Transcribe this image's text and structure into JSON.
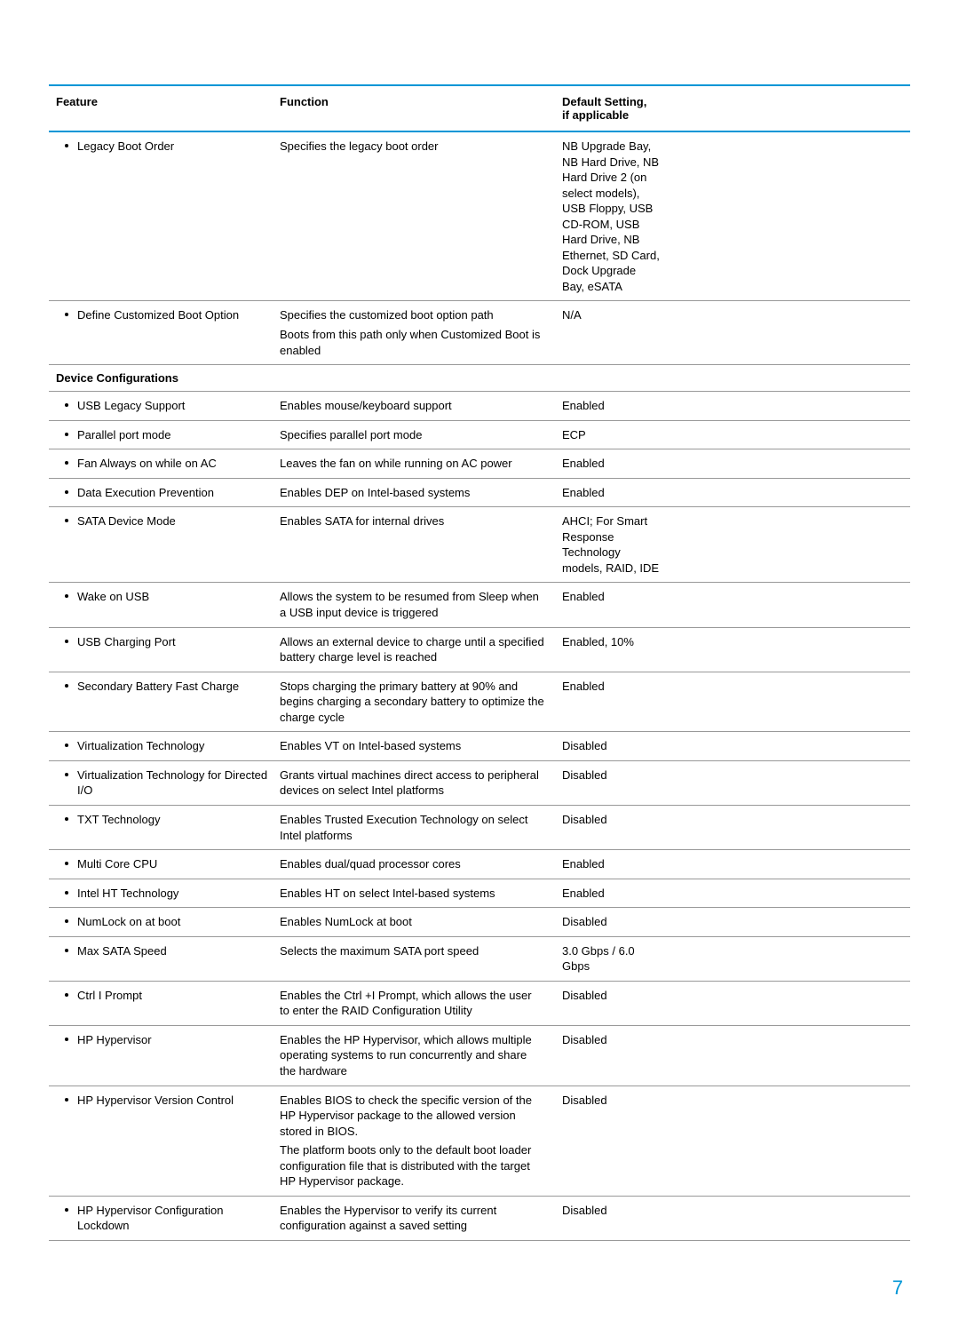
{
  "headers": {
    "feature": "Feature",
    "function": "Function",
    "default_line1": "Default Setting,",
    "default_line2": "if applicable"
  },
  "section": {
    "device_config": "Device Configurations"
  },
  "rows": [
    {
      "feature": "Legacy Boot Order",
      "function": "Specifies the legacy boot order",
      "default": "NB Upgrade Bay, NB Hard Drive, NB Hard Drive 2 (on select models), USB Floppy, USB CD-ROM, USB Hard Drive, NB Ethernet, SD Card, Dock Upgrade Bay, eSATA"
    },
    {
      "feature": "Define Customized Boot Option",
      "function_lines": [
        "Specifies the customized boot option path",
        "Boots from this path only when Customized Boot is enabled"
      ],
      "default": "N/A"
    }
  ],
  "device_rows": [
    {
      "feature": "USB Legacy Support",
      "function": "Enables mouse/keyboard support",
      "default": "Enabled"
    },
    {
      "feature": "Parallel port mode",
      "function": "Specifies parallel port mode",
      "default": "ECP"
    },
    {
      "feature": "Fan Always on while on AC",
      "function": "Leaves the fan on while running on AC power",
      "default": "Enabled"
    },
    {
      "feature": "Data Execution Prevention",
      "function": "Enables DEP on Intel-based systems",
      "default": "Enabled"
    },
    {
      "feature": "SATA Device Mode",
      "function": "Enables SATA for internal drives",
      "default": "AHCI; For Smart Response Technology models, RAID, IDE"
    },
    {
      "feature": "Wake on USB",
      "function": "Allows the system to be resumed from Sleep when a USB input device is triggered",
      "default": "Enabled"
    },
    {
      "feature": "USB Charging Port",
      "function": "Allows an external device to charge until a specified battery charge level is reached",
      "default": "Enabled, 10%"
    },
    {
      "feature": "Secondary Battery Fast Charge",
      "function": "Stops charging the primary battery at 90% and begins charging a secondary battery to optimize the charge cycle",
      "default": "Enabled"
    },
    {
      "feature": "Virtualization Technology",
      "function": "Enables VT on Intel-based systems",
      "default": "Disabled"
    },
    {
      "feature": "Virtualization Technology for Directed I/O",
      "function": "Grants virtual machines direct access to peripheral devices on select Intel platforms",
      "default": "Disabled"
    },
    {
      "feature": "TXT Technology",
      "function": "Enables Trusted Execution Technology on select Intel platforms",
      "default": "Disabled"
    },
    {
      "feature": "Multi Core CPU",
      "function": "Enables dual/quad processor cores",
      "default": "Enabled"
    },
    {
      "feature": "Intel HT Technology",
      "function": "Enables HT on select Intel-based systems",
      "default": "Enabled"
    },
    {
      "feature": "NumLock on at boot",
      "function": "Enables NumLock at boot",
      "default": "Disabled"
    },
    {
      "feature": "Max SATA Speed",
      "function": "Selects the maximum SATA port speed",
      "default": "3.0 Gbps / 6.0 Gbps"
    },
    {
      "feature": "Ctrl I Prompt",
      "function": "Enables the Ctrl +I Prompt, which allows the user to enter the RAID Configuration Utility",
      "default": "Disabled"
    },
    {
      "feature": "HP Hypervisor",
      "function": "Enables the HP Hypervisor, which allows multiple operating systems to run concurrently and share the hardware",
      "default": "Disabled"
    },
    {
      "feature": "HP Hypervisor Version Control",
      "function_lines": [
        "Enables BIOS to check the specific version of the HP Hypervisor package to the allowed version stored in BIOS.",
        "The platform boots only to the default boot loader configuration file that is distributed with the target HP Hypervisor package."
      ],
      "default": "Disabled"
    },
    {
      "feature": "HP Hypervisor Configuration Lockdown",
      "function": "Enables the Hypervisor to verify its current configuration against a saved setting",
      "default": "Disabled"
    }
  ],
  "page_number": "7"
}
